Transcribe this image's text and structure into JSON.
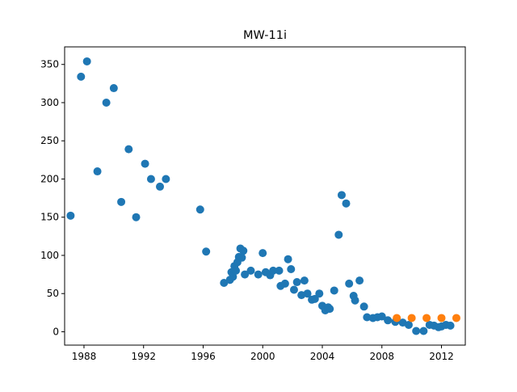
{
  "chart_data": {
    "type": "scatter",
    "title": "MW-11i",
    "xlabel": "",
    "ylabel": "",
    "xlim": [
      1986.7,
      2013.6
    ],
    "ylim": [
      -17.5,
      373
    ],
    "x_ticks": [
      1988,
      1992,
      1996,
      2000,
      2004,
      2008,
      2012
    ],
    "y_ticks": [
      0,
      50,
      100,
      150,
      200,
      250,
      300,
      350
    ],
    "grid": false,
    "legend": "none",
    "series": [
      {
        "color": "#1f77b4",
        "points": [
          [
            1987.1,
            152
          ],
          [
            1987.8,
            334
          ],
          [
            1988.2,
            354
          ],
          [
            1988.9,
            210
          ],
          [
            1989.5,
            300
          ],
          [
            1990.0,
            319
          ],
          [
            1990.5,
            170
          ],
          [
            1991.0,
            239
          ],
          [
            1991.5,
            150
          ],
          [
            1992.1,
            220
          ],
          [
            1992.5,
            200
          ],
          [
            1993.1,
            190
          ],
          [
            1993.5,
            200
          ],
          [
            1995.8,
            160
          ],
          [
            1996.2,
            105
          ],
          [
            1997.4,
            64
          ],
          [
            1997.8,
            68
          ],
          [
            1997.9,
            78
          ],
          [
            1998.0,
            72
          ],
          [
            1998.1,
            86
          ],
          [
            1998.2,
            80
          ],
          [
            1998.3,
            91
          ],
          [
            1998.4,
            98
          ],
          [
            1998.5,
            109
          ],
          [
            1998.6,
            97
          ],
          [
            1998.7,
            106
          ],
          [
            1998.8,
            75
          ],
          [
            1999.2,
            80
          ],
          [
            1999.7,
            75
          ],
          [
            2000.0,
            103
          ],
          [
            2000.2,
            78
          ],
          [
            2000.5,
            74
          ],
          [
            2000.7,
            80
          ],
          [
            2001.1,
            80
          ],
          [
            2001.2,
            60
          ],
          [
            2001.5,
            63
          ],
          [
            2001.7,
            95
          ],
          [
            2001.9,
            82
          ],
          [
            2002.1,
            55
          ],
          [
            2002.3,
            65
          ],
          [
            2002.6,
            48
          ],
          [
            2002.8,
            67
          ],
          [
            2003.0,
            50
          ],
          [
            2003.3,
            42
          ],
          [
            2003.5,
            43
          ],
          [
            2003.8,
            50
          ],
          [
            2004.0,
            34
          ],
          [
            2004.2,
            28
          ],
          [
            2004.4,
            32
          ],
          [
            2004.5,
            30
          ],
          [
            2004.8,
            54
          ],
          [
            2005.1,
            127
          ],
          [
            2005.3,
            179
          ],
          [
            2005.6,
            168
          ],
          [
            2005.8,
            63
          ],
          [
            2006.1,
            47
          ],
          [
            2006.2,
            41
          ],
          [
            2006.5,
            67
          ],
          [
            2006.8,
            33
          ],
          [
            2007.0,
            19
          ],
          [
            2007.4,
            18
          ],
          [
            2007.7,
            19
          ],
          [
            2008.0,
            20
          ],
          [
            2008.4,
            15
          ],
          [
            2008.9,
            13
          ],
          [
            2009.4,
            12
          ],
          [
            2009.8,
            9
          ],
          [
            2010.3,
            1
          ],
          [
            2010.8,
            1
          ],
          [
            2011.2,
            9
          ],
          [
            2011.5,
            8
          ],
          [
            2011.8,
            6
          ],
          [
            2012.0,
            7
          ],
          [
            2012.3,
            9
          ],
          [
            2012.6,
            8
          ]
        ]
      },
      {
        "color": "#ff7f0e",
        "points": [
          [
            2009.0,
            18
          ],
          [
            2010.0,
            18
          ],
          [
            2011.0,
            18
          ],
          [
            2012.0,
            18
          ],
          [
            2013.0,
            18
          ]
        ]
      }
    ]
  }
}
